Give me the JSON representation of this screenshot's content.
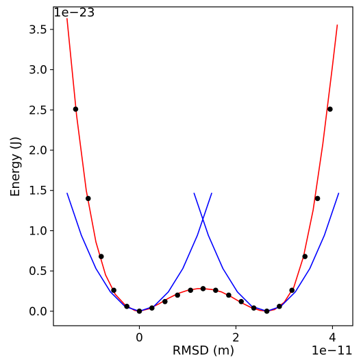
{
  "chart_data": {
    "type": "line",
    "xlabel": "RMSD (m)",
    "ylabel": "Energy (J)",
    "x_offset_label": "1e−11",
    "y_offset_label": "1e−23",
    "xlim": [
      -1.78,
      4.42
    ],
    "ylim": [
      -0.18,
      3.78
    ],
    "x_ticks": [
      0,
      2,
      4
    ],
    "x_tick_labels": [
      "0",
      "2",
      "4"
    ],
    "y_ticks": [
      0.0,
      0.5,
      1.0,
      1.5,
      2.0,
      2.5,
      3.0,
      3.5
    ],
    "y_tick_labels": [
      "0.0",
      "0.5",
      "1.0",
      "1.5",
      "2.0",
      "2.5",
      "3.0",
      "3.5"
    ],
    "grid": false,
    "legend": "none",
    "colors": {
      "fit": "#ff0000",
      "harmonic": "#0000ff",
      "points": "#000000"
    },
    "series": [
      {
        "kind": "scatter",
        "color": "#000000",
        "x": [
          -1.32,
          -1.06,
          -0.79,
          -0.53,
          -0.26,
          0.0,
          0.26,
          0.53,
          0.79,
          1.06,
          1.32,
          1.58,
          1.85,
          2.11,
          2.37,
          2.64,
          2.9,
          3.16,
          3.43,
          3.69,
          3.95
        ],
        "y": [
          2.51,
          1.4,
          0.68,
          0.26,
          0.06,
          0.0,
          0.04,
          0.12,
          0.2,
          0.26,
          0.28,
          0.26,
          0.2,
          0.12,
          0.04,
          0.0,
          0.06,
          0.26,
          0.68,
          1.4,
          2.51
        ]
      },
      {
        "kind": "curve",
        "color": "#ff0000",
        "x": [
          -1.5,
          -1.3,
          -1.1,
          -0.9,
          -0.7,
          -0.5,
          -0.3,
          -0.1,
          0.0,
          0.2,
          0.4,
          0.6,
          0.8,
          1.0,
          1.2,
          1.32,
          1.5,
          1.7,
          1.9,
          2.1,
          2.3,
          2.5,
          2.64,
          2.8,
          3.0,
          3.2,
          3.4,
          3.6,
          3.8,
          4.0,
          4.1
        ],
        "y": [
          3.64,
          2.43,
          1.5,
          0.86,
          0.45,
          0.21,
          0.08,
          0.01,
          0.0,
          0.03,
          0.09,
          0.16,
          0.22,
          0.26,
          0.28,
          0.28,
          0.27,
          0.24,
          0.18,
          0.11,
          0.05,
          0.01,
          0.0,
          0.02,
          0.11,
          0.3,
          0.68,
          1.26,
          2.08,
          3.05,
          3.56
        ]
      },
      {
        "kind": "curve",
        "color": "#0000ff",
        "x": [
          -1.5,
          -1.2,
          -0.9,
          -0.6,
          -0.3,
          0.0,
          0.3,
          0.6,
          0.9,
          1.2,
          1.5
        ],
        "y": [
          1.47,
          0.94,
          0.53,
          0.24,
          0.06,
          0.0,
          0.06,
          0.24,
          0.53,
          0.94,
          1.47
        ]
      },
      {
        "kind": "curve",
        "color": "#0000ff",
        "x": [
          1.13,
          1.43,
          1.73,
          2.03,
          2.33,
          2.64,
          2.93,
          3.23,
          3.53,
          3.83,
          4.13
        ],
        "y": [
          1.47,
          0.94,
          0.53,
          0.24,
          0.06,
          0.0,
          0.06,
          0.24,
          0.53,
          0.94,
          1.47
        ]
      }
    ]
  }
}
